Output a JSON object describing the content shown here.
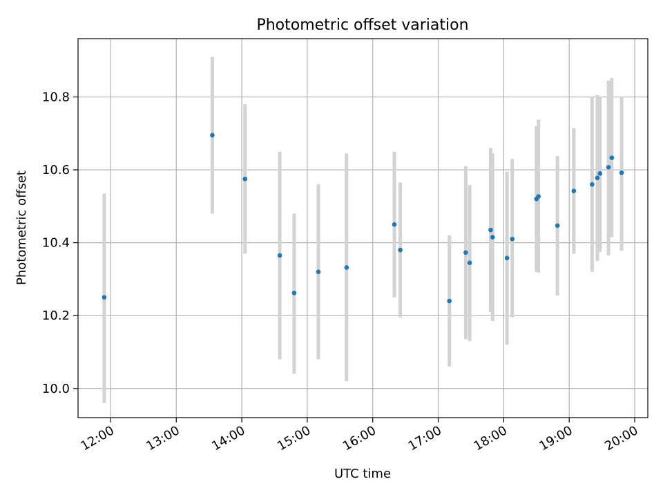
{
  "chart_data": {
    "type": "scatter",
    "title": "Photometric offset variation",
    "xlabel": "UTC time",
    "ylabel": "Photometric offset",
    "x_unit": "hours (UTC)",
    "xlim": [
      11.5,
      20.2
    ],
    "ylim": [
      9.92,
      10.96
    ],
    "grid": true,
    "x_ticks": [
      {
        "value": 12,
        "label": "12:00"
      },
      {
        "value": 13,
        "label": "13:00"
      },
      {
        "value": 14,
        "label": "14:00"
      },
      {
        "value": 15,
        "label": "15:00"
      },
      {
        "value": 16,
        "label": "16:00"
      },
      {
        "value": 17,
        "label": "17:00"
      },
      {
        "value": 18,
        "label": "18:00"
      },
      {
        "value": 19,
        "label": "19:00"
      },
      {
        "value": 20,
        "label": "20:00"
      }
    ],
    "y_ticks": [
      {
        "value": 10.0,
        "label": "10.0"
      },
      {
        "value": 10.2,
        "label": "10.2"
      },
      {
        "value": 10.4,
        "label": "10.4"
      },
      {
        "value": 10.6,
        "label": "10.6"
      },
      {
        "value": 10.8,
        "label": "10.8"
      }
    ],
    "colors": {
      "point": "#1f77b4",
      "errorbar": "#d3d3d3",
      "grid": "#b0b0b0"
    },
    "points": [
      {
        "x": 11.9,
        "y": 10.25,
        "low": 9.96,
        "high": 10.535
      },
      {
        "x": 13.55,
        "y": 10.695,
        "low": 10.48,
        "high": 10.91
      },
      {
        "x": 14.05,
        "y": 10.575,
        "low": 10.37,
        "high": 10.78
      },
      {
        "x": 14.58,
        "y": 10.365,
        "low": 10.08,
        "high": 10.65
      },
      {
        "x": 14.8,
        "y": 10.262,
        "low": 10.04,
        "high": 10.48
      },
      {
        "x": 15.17,
        "y": 10.32,
        "low": 10.08,
        "high": 10.56
      },
      {
        "x": 15.6,
        "y": 10.332,
        "low": 10.02,
        "high": 10.645
      },
      {
        "x": 16.33,
        "y": 10.45,
        "low": 10.25,
        "high": 10.65
      },
      {
        "x": 16.42,
        "y": 10.38,
        "low": 10.195,
        "high": 10.565
      },
      {
        "x": 17.17,
        "y": 10.24,
        "low": 10.06,
        "high": 10.42
      },
      {
        "x": 17.42,
        "y": 10.373,
        "low": 10.135,
        "high": 10.61
      },
      {
        "x": 17.48,
        "y": 10.345,
        "low": 10.13,
        "high": 10.558
      },
      {
        "x": 17.8,
        "y": 10.435,
        "low": 10.21,
        "high": 10.66
      },
      {
        "x": 17.83,
        "y": 10.415,
        "low": 10.185,
        "high": 10.645
      },
      {
        "x": 18.05,
        "y": 10.358,
        "low": 10.12,
        "high": 10.595
      },
      {
        "x": 18.13,
        "y": 10.41,
        "low": 10.195,
        "high": 10.63
      },
      {
        "x": 18.5,
        "y": 10.52,
        "low": 10.32,
        "high": 10.72
      },
      {
        "x": 18.53,
        "y": 10.527,
        "low": 10.318,
        "high": 10.738
      },
      {
        "x": 18.82,
        "y": 10.447,
        "low": 10.255,
        "high": 10.638
      },
      {
        "x": 19.07,
        "y": 10.542,
        "low": 10.37,
        "high": 10.715
      },
      {
        "x": 19.35,
        "y": 10.56,
        "low": 10.32,
        "high": 10.8
      },
      {
        "x": 19.43,
        "y": 10.578,
        "low": 10.35,
        "high": 10.805
      },
      {
        "x": 19.47,
        "y": 10.59,
        "low": 10.375,
        "high": 10.8
      },
      {
        "x": 19.6,
        "y": 10.607,
        "low": 10.365,
        "high": 10.845
      },
      {
        "x": 19.65,
        "y": 10.633,
        "low": 10.415,
        "high": 10.852
      },
      {
        "x": 19.8,
        "y": 10.592,
        "low": 10.378,
        "high": 10.8
      }
    ]
  }
}
